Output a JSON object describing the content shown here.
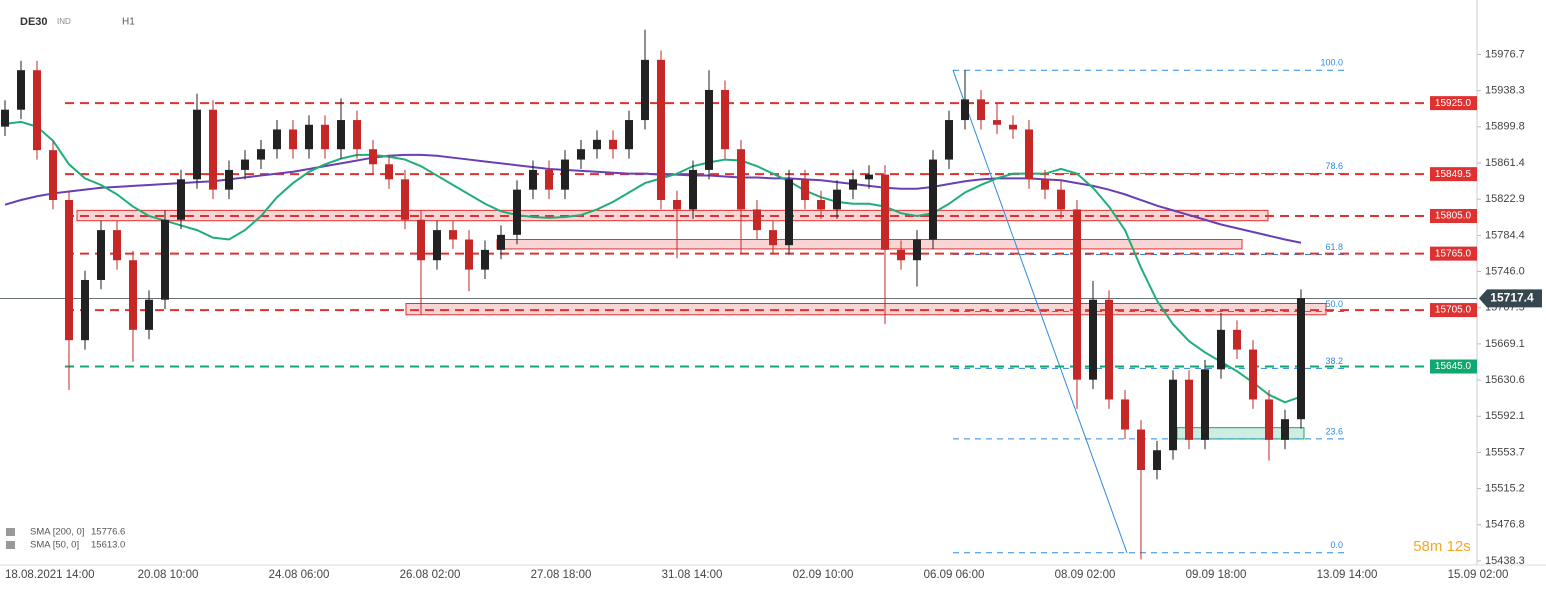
{
  "header": {
    "symbol": "DE30",
    "kind": "IND",
    "interval": "H1"
  },
  "chart_data": {
    "type": "candlestick",
    "ylim": [
      15434,
      16024
    ],
    "yticks": [
      15976.7,
      15938.3,
      15899.8,
      15861.4,
      15822.9,
      15784.4,
      {
        "value": 15746,
        "label": "15746.0"
      },
      15707.5,
      15669.1,
      15630.6,
      15592.1,
      15553.7,
      15515.2,
      15476.8,
      15438.3
    ],
    "xtick_labels": [
      "18.08.2021 14:00",
      "20.08 10:00",
      "24.08 06:00",
      "26.08 02:00",
      "27.08 18:00",
      "31.08 14:00",
      "02.09 10:00",
      "06.09 06:00",
      "08.09 02:00",
      "09.09 18:00",
      "13.09 14:00",
      "15.09 02:00"
    ],
    "up_color": "#222222",
    "down_color": "#c62828",
    "open": [
      15900,
      15918,
      15960,
      15875,
      15822,
      15673,
      15737,
      15790,
      15758,
      15684,
      15716,
      15801,
      15844,
      15918,
      15833,
      15854,
      15865,
      15876,
      15897,
      15876,
      15902,
      15876,
      15907,
      15876,
      15860,
      15844,
      15801,
      15758,
      15790,
      15780,
      15748,
      15769,
      15785,
      15833,
      15854,
      15833,
      15865,
      15876,
      15886,
      15876,
      15907,
      15971,
      15822,
      15812,
      15854,
      15939,
      15876,
      15812,
      15790,
      15774,
      15844,
      15822,
      15812,
      15833,
      15844,
      15849,
      15769,
      15758,
      15780,
      15865,
      15907,
      15929,
      15907,
      15902,
      15897,
      15844,
      15833,
      15812,
      15631,
      15716,
      15610,
      15578,
      15535,
      15556,
      15631,
      15567,
      15642,
      15684,
      15663,
      15610,
      15567,
      15589
    ],
    "high": [
      15928,
      15970,
      15970,
      15885,
      15832,
      15747,
      15800,
      15800,
      15768,
      15726,
      15811,
      15854,
      15935,
      15928,
      15864,
      15875,
      15886,
      15907,
      15907,
      15912,
      15912,
      15930,
      15917,
      15886,
      15870,
      15854,
      15811,
      15800,
      15800,
      15790,
      15779,
      15795,
      15843,
      15864,
      15864,
      15875,
      15886,
      15896,
      15896,
      15917,
      16003,
      15981,
      15832,
      15864,
      15960,
      15949,
      15886,
      15822,
      15800,
      15854,
      15854,
      15832,
      15843,
      15854,
      15859,
      15859,
      15779,
      15790,
      15875,
      15917,
      15960,
      15939,
      15925,
      15912,
      15907,
      15854,
      15843,
      15822,
      15736,
      15726,
      15620,
      15588,
      15566,
      15641,
      15641,
      15652,
      15702,
      15694,
      15673,
      15620,
      15599,
      15727
    ],
    "low": [
      15890,
      15908,
      15865,
      15812,
      15620,
      15663,
      15727,
      15748,
      15650,
      15674,
      15706,
      15791,
      15834,
      15823,
      15823,
      15844,
      15855,
      15866,
      15866,
      15866,
      15866,
      15866,
      15866,
      15850,
      15834,
      15791,
      15700,
      15748,
      15770,
      15725,
      15738,
      15759,
      15775,
      15823,
      15823,
      15823,
      15855,
      15866,
      15866,
      15866,
      15897,
      15812,
      15760,
      15802,
      15844,
      15866,
      15765,
      15780,
      15764,
      15764,
      15812,
      15802,
      15802,
      15823,
      15834,
      15690,
      15748,
      15730,
      15770,
      15855,
      15897,
      15897,
      15892,
      15887,
      15834,
      15823,
      15802,
      15600,
      15621,
      15600,
      15568,
      15440,
      15525,
      15546,
      15557,
      15557,
      15632,
      15653,
      15600,
      15545,
      15557,
      15579
    ],
    "close": [
      15918,
      15960,
      15875,
      15822,
      15673,
      15737,
      15790,
      15758,
      15684,
      15716,
      15801,
      15844,
      15918,
      15833,
      15854,
      15865,
      15876,
      15897,
      15876,
      15902,
      15876,
      15907,
      15876,
      15860,
      15844,
      15801,
      15758,
      15790,
      15780,
      15748,
      15769,
      15785,
      15833,
      15854,
      15833,
      15865,
      15876,
      15886,
      15876,
      15907,
      15971,
      15822,
      15812,
      15854,
      15939,
      15876,
      15812,
      15790,
      15774,
      15844,
      15822,
      15812,
      15833,
      15844,
      15849,
      15769,
      15758,
      15780,
      15865,
      15907,
      15929,
      15907,
      15902,
      15897,
      15844,
      15833,
      15812,
      15631,
      15716,
      15610,
      15578,
      15535,
      15556,
      15631,
      15567,
      15642,
      15684,
      15663,
      15610,
      15567,
      15589,
      15717.4
    ],
    "series": [
      {
        "name": "SMA [200, 0]",
        "color": "#6a3fb5",
        "last_label": "15776.6",
        "values": [
          15817,
          15822,
          15826,
          15829,
          15831,
          15833,
          15835,
          15836,
          15837,
          15838,
          15839,
          15840,
          15841,
          15842,
          15844,
          15846,
          15848,
          15850,
          15852,
          15855,
          15858,
          15861,
          15864,
          15867,
          15869,
          15870,
          15870,
          15869,
          15867,
          15865,
          15863,
          15861,
          15859,
          15857,
          15855,
          15854,
          15853,
          15852,
          15851,
          15850,
          15850,
          15849,
          15849,
          15848,
          15848,
          15847,
          15846,
          15846,
          15845,
          15845,
          15844,
          15843,
          15841,
          15839,
          15837,
          15835,
          15834,
          15834,
          15836,
          15839,
          15842,
          15844,
          15845,
          15845,
          15845,
          15844,
          15843,
          15840,
          15837,
          15833,
          15828,
          15822,
          15816,
          15811,
          15806,
          15801,
          15796,
          15792,
          15788,
          15784,
          15780,
          15776.6
        ]
      },
      {
        "name": "SMA [50, 0]",
        "color": "#1fae7a",
        "last_label": "15613.0",
        "values": [
          15903,
          15905,
          15900,
          15885,
          15860,
          15845,
          15838,
          15828,
          15815,
          15805,
          15800,
          15795,
          15790,
          15782,
          15780,
          15790,
          15805,
          15825,
          15840,
          15852,
          15860,
          15866,
          15870,
          15870,
          15868,
          15865,
          15858,
          15848,
          15838,
          15828,
          15818,
          15810,
          15806,
          15804,
          15803,
          15804,
          15806,
          15812,
          15820,
          15830,
          15840,
          15845,
          15850,
          15858,
          15862,
          15865,
          15864,
          15858,
          15850,
          15842,
          15832,
          15825,
          15820,
          15818,
          15818,
          15815,
          15808,
          15805,
          15808,
          15818,
          15830,
          15838,
          15845,
          15850,
          15850,
          15850,
          15855,
          15850,
          15835,
          15815,
          15790,
          15750,
          15715,
          15690,
          15672,
          15660,
          15650,
          15640,
          15628,
          15615,
          15607,
          15613
        ]
      }
    ],
    "levels": [
      {
        "value": 15925,
        "label": "15925.0",
        "color": "#e03131"
      },
      {
        "value": 15849.5,
        "label": "15849.5",
        "color": "#e03131"
      },
      {
        "value": 15805,
        "label": "15805.0",
        "color": "#e03131"
      },
      {
        "value": 15765,
        "label": "15765.0",
        "color": "#e03131"
      },
      {
        "value": 15705,
        "label": "15705.0",
        "color": "#e03131"
      },
      {
        "value": 15645,
        "label": "15645.0",
        "color": "#10a870"
      }
    ],
    "zones": [
      {
        "low": 15800,
        "high": 15811,
        "color": "#e03131"
      },
      {
        "low": 15770,
        "high": 15780,
        "color": "#e03131"
      },
      {
        "low": 15700,
        "high": 15712,
        "color": "#e03131"
      },
      {
        "low": 15568,
        "high": 15580,
        "color": "#10a870"
      }
    ],
    "fib": {
      "high": 15960,
      "low": 15447,
      "color": "#2b8be0",
      "levels": [
        {
          "value": 100,
          "label": "100.0"
        },
        78.6,
        61.8,
        {
          "value": 50,
          "label": "50.0"
        },
        38.2,
        23.6,
        {
          "value": 0,
          "label": "0.0"
        }
      ]
    },
    "current_price": 15717.4,
    "timer": "58m 12s"
  }
}
